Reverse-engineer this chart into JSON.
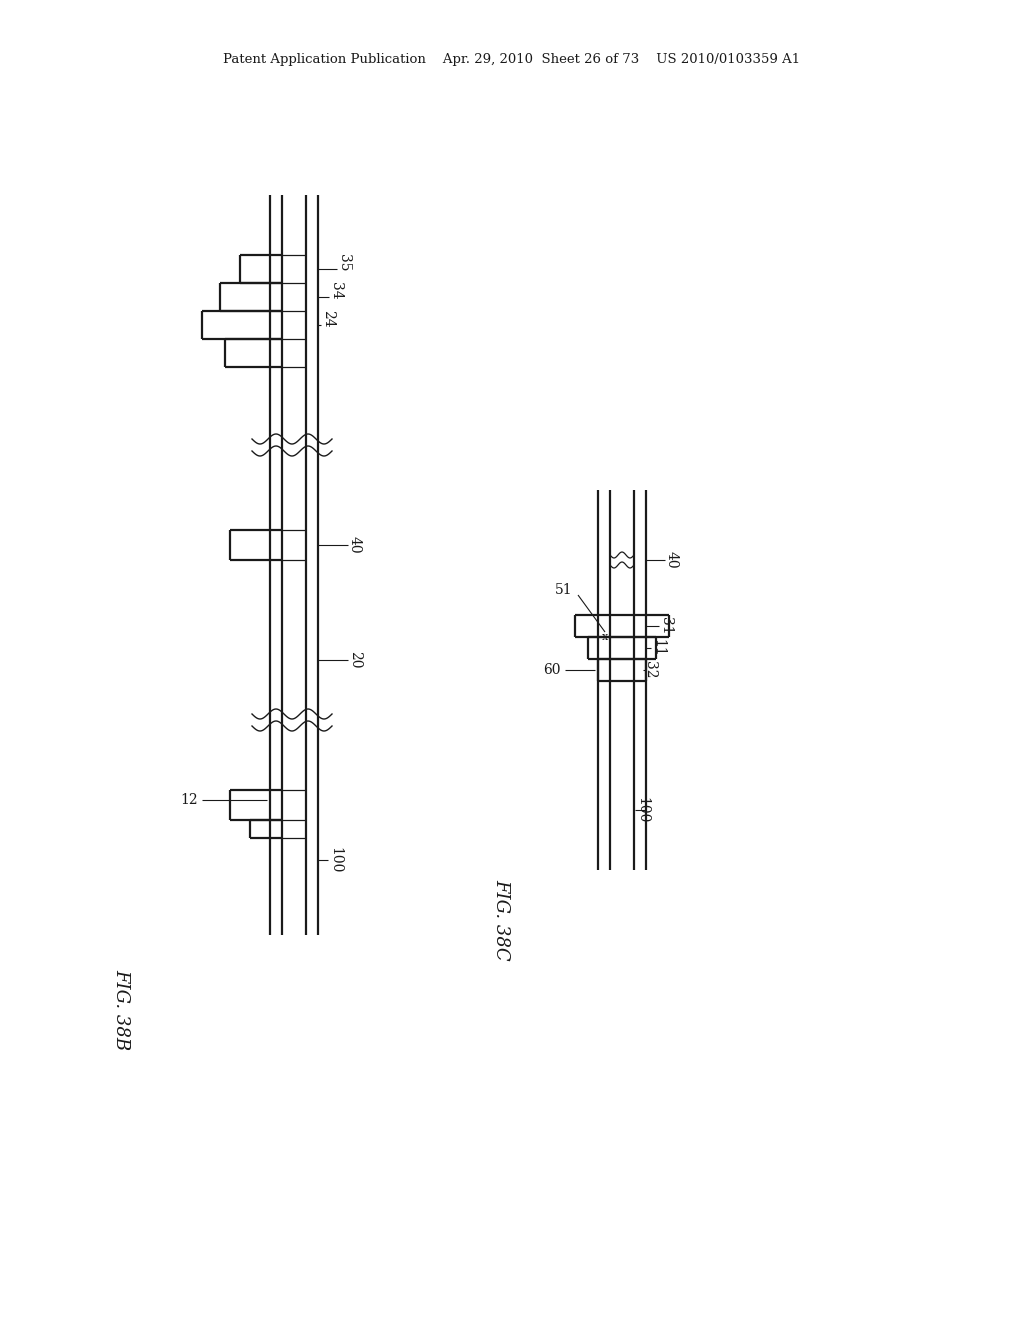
{
  "bg_color": "#ffffff",
  "line_color": "#1a1a1a",
  "header": "Patent Application Publication    Apr. 29, 2010  Sheet 26 of 73    US 2010/0103359 A1",
  "fig38b_label": "FIG. 38B",
  "fig38c_label": "FIG. 38C",
  "note": "All coordinates in image space: x=right, y=down, origin top-left"
}
